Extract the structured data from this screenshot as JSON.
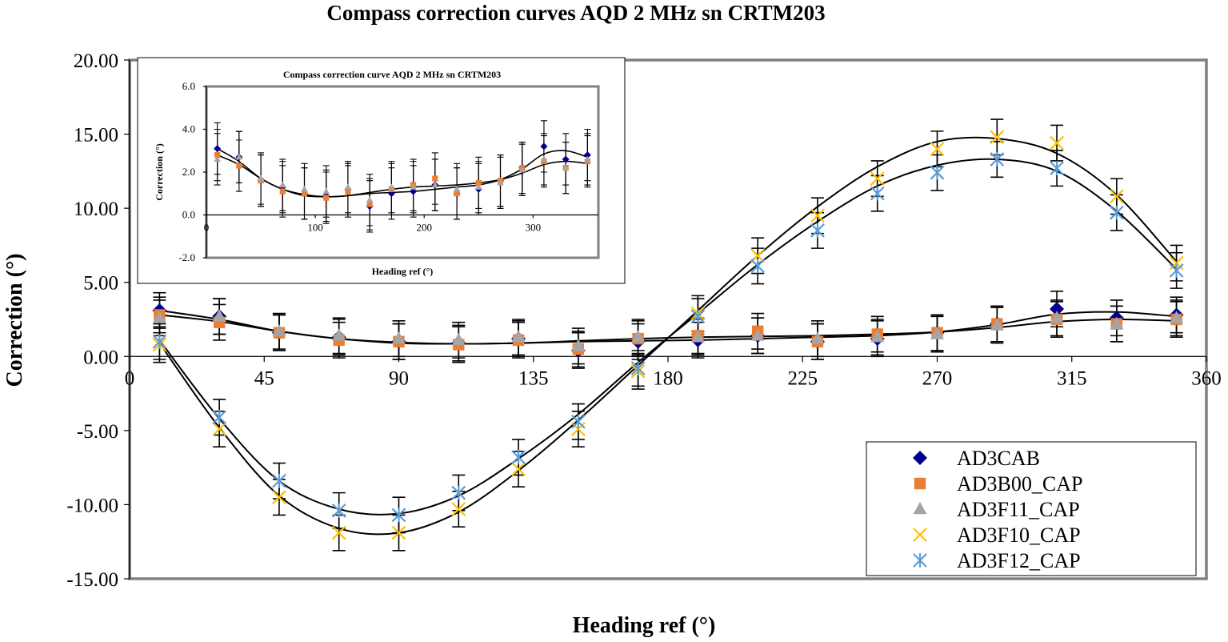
{
  "chart_data": [
    {
      "type": "scatter",
      "title": "Compass correction curves AQD 2 MHz sn CRTM203",
      "xlabel": "Heading ref (°)",
      "ylabel": "Correction (°)",
      "xlim": [
        0,
        360
      ],
      "ylim": [
        -15,
        20
      ],
      "x_ticks": [
        0,
        45,
        90,
        135,
        180,
        225,
        270,
        315,
        360
      ],
      "x_tick_labels": [
        "0",
        "45",
        "90",
        "135",
        "180",
        "225",
        "270",
        "315",
        "360"
      ],
      "y_ticks": [
        20,
        15,
        10,
        5,
        0,
        -5,
        -10,
        -15
      ],
      "y_tick_labels": [
        "20.00",
        "15.00",
        "10.00",
        "5.00",
        "0.00",
        "-5.00",
        "-10.00",
        "-15.00"
      ],
      "grid": false,
      "legend_position": "bottom-right",
      "error_bar": 1.2,
      "x": [
        10,
        30,
        50,
        70,
        90,
        110,
        130,
        150,
        170,
        190,
        210,
        230,
        250,
        270,
        290,
        310,
        330,
        350
      ],
      "series": [
        {
          "name": "AD3CAB",
          "marker": "diamond",
          "color": "#00008B",
          "values": [
            3.1,
            2.7,
            1.6,
            1.3,
            1.0,
            0.9,
            1.2,
            0.4,
            1.0,
            1.1,
            1.4,
            1.0,
            1.2,
            1.6,
            2.2,
            3.2,
            2.6,
            2.8
          ]
        },
        {
          "name": "AD3B00_CAP",
          "marker": "square",
          "color": "#ED7D31",
          "values": [
            2.8,
            2.3,
            1.6,
            1.1,
            1.0,
            0.8,
            1.1,
            0.5,
            1.2,
            1.4,
            1.7,
            1.0,
            1.5,
            1.6,
            2.2,
            2.5,
            2.2,
            2.5
          ]
        },
        {
          "name": "AD3F11_CAP",
          "marker": "triangle",
          "color": "#A5A5A5",
          "values": [
            2.6,
            2.7,
            1.7,
            1.4,
            1.2,
            1.1,
            1.3,
            0.7,
            1.3,
            1.3,
            1.4,
            1.2,
            1.3,
            1.5,
            2.1,
            2.6,
            2.2,
            2.6
          ]
        },
        {
          "name": "AD3F10_CAP",
          "marker": "x",
          "color": "#FFC000",
          "values": [
            0.8,
            -4.9,
            -9.5,
            -11.9,
            -11.9,
            -10.3,
            -7.6,
            -4.9,
            -1.0,
            2.9,
            6.8,
            9.5,
            12.0,
            14.0,
            14.8,
            14.4,
            10.8,
            6.3
          ]
        },
        {
          "name": "AD3F12_CAP",
          "marker": "star",
          "color": "#5B9BD5",
          "values": [
            1.0,
            -4.1,
            -8.4,
            -10.4,
            -10.7,
            -9.2,
            -6.8,
            -4.4,
            -0.8,
            2.7,
            6.1,
            8.5,
            11.0,
            12.4,
            13.3,
            12.7,
            9.7,
            5.8
          ]
        }
      ],
      "trend_curves": [
        {
          "name": "AD3CAB trend",
          "values": [
            3.1,
            2.5,
            1.7,
            1.2,
            0.9,
            0.85,
            0.9,
            1.0,
            1.05,
            1.1,
            1.2,
            1.3,
            1.4,
            1.65,
            2.15,
            2.85,
            3.0,
            2.7
          ]
        },
        {
          "name": "AD3B00_CAP trend",
          "values": [
            2.8,
            2.35,
            1.7,
            1.2,
            0.95,
            0.85,
            0.9,
            1.05,
            1.2,
            1.3,
            1.35,
            1.4,
            1.5,
            1.65,
            1.95,
            2.35,
            2.5,
            2.4
          ]
        },
        {
          "name": "AD3F10_CAP trend",
          "values": [
            0.9,
            -4.8,
            -9.4,
            -11.6,
            -11.9,
            -10.5,
            -7.7,
            -4.3,
            -0.6,
            3.1,
            6.8,
            10.1,
            12.8,
            14.5,
            14.7,
            13.7,
            10.9,
            6.4
          ]
        },
        {
          "name": "AD3F12_CAP trend",
          "values": [
            1.1,
            -4.2,
            -8.4,
            -10.3,
            -10.6,
            -9.4,
            -6.9,
            -3.9,
            -0.4,
            2.9,
            6.2,
            9.1,
            11.5,
            12.9,
            13.3,
            12.5,
            9.8,
            5.9
          ]
        }
      ]
    },
    {
      "type": "scatter",
      "title": "Compass correction curve AQD 2 MHz sn CRTM203",
      "xlabel": "Heading ref (°)",
      "ylabel": "Correction (°)",
      "xlim": [
        0,
        360
      ],
      "ylim": [
        -2,
        6
      ],
      "x_ticks": [
        0,
        100,
        200,
        300
      ],
      "x_tick_labels": [
        "0",
        "100",
        "200",
        "300"
      ],
      "y_ticks": [
        6,
        4,
        2,
        0,
        -2
      ],
      "y_tick_labels": [
        "6.0",
        "4.0",
        "2.0",
        "0.0",
        "-2.0"
      ],
      "grid": false,
      "error_bar": 1.2,
      "x": [
        10,
        30,
        50,
        70,
        90,
        110,
        130,
        150,
        170,
        190,
        210,
        230,
        250,
        270,
        290,
        310,
        330,
        350
      ],
      "series": [
        {
          "name": "AD3CAB",
          "marker": "diamond",
          "color": "#00008B",
          "values": [
            3.1,
            2.7,
            1.6,
            1.3,
            1.0,
            0.9,
            1.2,
            0.4,
            1.0,
            1.1,
            1.4,
            1.0,
            1.2,
            1.6,
            2.2,
            3.2,
            2.6,
            2.8
          ]
        },
        {
          "name": "AD3B00_CAP",
          "marker": "square",
          "color": "#ED7D31",
          "values": [
            2.8,
            2.3,
            1.6,
            1.1,
            1.0,
            0.8,
            1.1,
            0.5,
            1.2,
            1.4,
            1.7,
            1.0,
            1.5,
            1.6,
            2.2,
            2.5,
            2.2,
            2.5
          ]
        },
        {
          "name": "AD3F11_CAP",
          "marker": "triangle",
          "color": "#A5A5A5",
          "values": [
            2.6,
            2.7,
            1.7,
            1.4,
            1.2,
            1.1,
            1.3,
            0.7,
            1.3,
            1.3,
            1.4,
            1.2,
            1.3,
            1.5,
            2.1,
            2.6,
            2.2,
            2.6
          ]
        }
      ],
      "trend_curves": [
        {
          "name": "AD3CAB trend",
          "values": [
            3.1,
            2.5,
            1.7,
            1.2,
            0.9,
            0.85,
            0.9,
            1.0,
            1.05,
            1.1,
            1.2,
            1.3,
            1.4,
            1.65,
            2.15,
            2.85,
            3.0,
            2.7
          ]
        },
        {
          "name": "AD3B00_CAP trend",
          "values": [
            2.8,
            2.35,
            1.7,
            1.2,
            0.95,
            0.85,
            0.9,
            1.05,
            1.2,
            1.3,
            1.35,
            1.4,
            1.5,
            1.65,
            1.95,
            2.35,
            2.5,
            2.4
          ]
        }
      ]
    }
  ]
}
